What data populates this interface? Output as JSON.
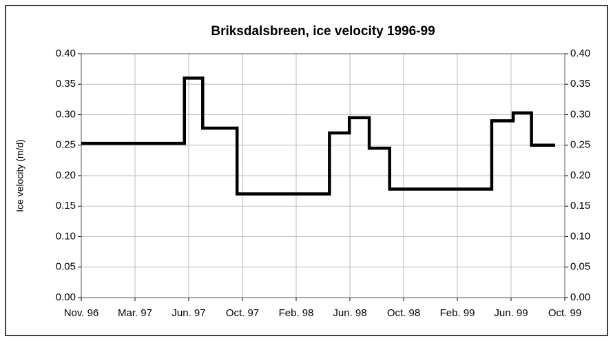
{
  "chart_data": {
    "type": "line",
    "title": "Briksdalsbreen, ice velocity 1996-99",
    "ylabel": "Ice velocity (m/d)",
    "xlim": [
      0,
      9
    ],
    "xticks": [
      {
        "value": 0,
        "label": "Nov. 96"
      },
      {
        "value": 1,
        "label": "Mar. 97"
      },
      {
        "value": 2,
        "label": "Jun. 97"
      },
      {
        "value": 3,
        "label": "Oct. 97"
      },
      {
        "value": 4,
        "label": "Feb. 98"
      },
      {
        "value": 5,
        "label": "Jun. 98"
      },
      {
        "value": 6,
        "label": "Oct. 98"
      },
      {
        "value": 7,
        "label": "Feb. 99"
      },
      {
        "value": 8,
        "label": "Jun. 99"
      },
      {
        "value": 9,
        "label": "Oct. 99"
      }
    ],
    "ylim": [
      0,
      0.4
    ],
    "yticks": [
      {
        "value": 0,
        "label": "0.00"
      },
      {
        "value": 0.05,
        "label": "0.05"
      },
      {
        "value": 0.1,
        "label": "0.10"
      },
      {
        "value": 0.15,
        "label": "0.15"
      },
      {
        "value": 0.2,
        "label": "0.20"
      },
      {
        "value": 0.25,
        "label": "0.25"
      },
      {
        "value": 0.3,
        "label": "0.30"
      },
      {
        "value": 0.35,
        "label": "0.35"
      },
      {
        "value": 0.4,
        "label": "0.40"
      }
    ],
    "y2lim": [
      0,
      0.4
    ],
    "y2ticks": [
      {
        "value": 0,
        "label": "0.00"
      },
      {
        "value": 0.05,
        "label": "0.05"
      },
      {
        "value": 0.1,
        "label": "0.10"
      },
      {
        "value": 0.15,
        "label": "0.15"
      },
      {
        "value": 0.2,
        "label": "0.20"
      },
      {
        "value": 0.25,
        "label": "0.25"
      },
      {
        "value": 0.3,
        "label": "0.30"
      },
      {
        "value": 0.35,
        "label": "0.35"
      },
      {
        "value": 0.4,
        "label": "0.40"
      }
    ],
    "grid": true,
    "series": [
      {
        "color": "#000000",
        "x": [
          0,
          1.92,
          1.92,
          2.26,
          2.26,
          2.9,
          2.9,
          4.62,
          4.62,
          4.99,
          4.99,
          5.36,
          5.36,
          5.74,
          5.74,
          7.64,
          7.64,
          8.04,
          8.04,
          8.38,
          8.38,
          8.82
        ],
        "values": [
          0.253,
          0.253,
          0.36,
          0.36,
          0.278,
          0.278,
          0.17,
          0.17,
          0.27,
          0.27,
          0.295,
          0.295,
          0.245,
          0.245,
          0.178,
          0.178,
          0.29,
          0.29,
          0.303,
          0.303,
          0.25,
          0.25
        ]
      }
    ]
  }
}
